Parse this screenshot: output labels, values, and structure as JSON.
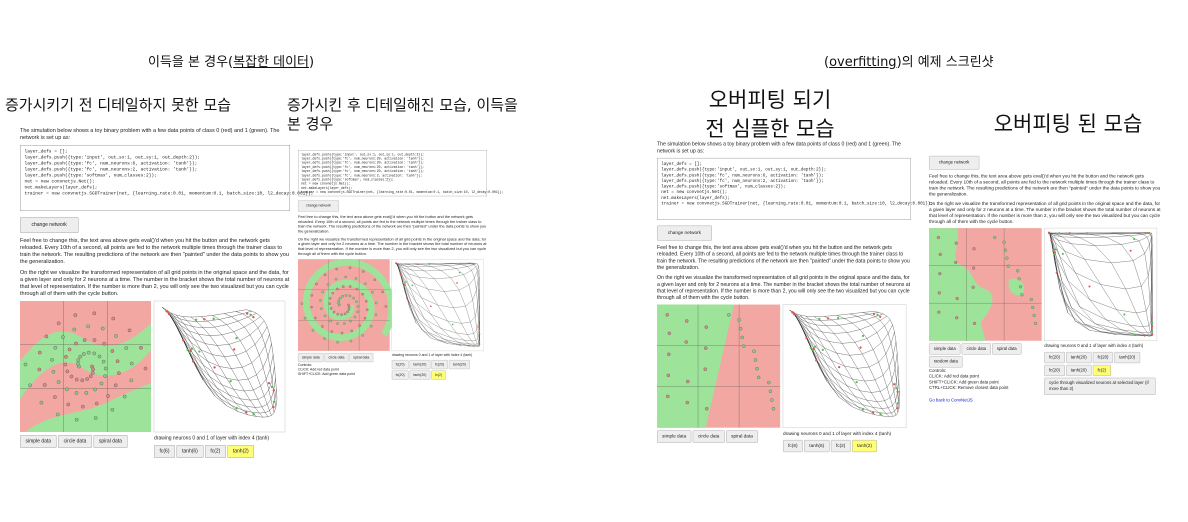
{
  "header_left": {
    "before": "이득을 본 경우(",
    "link": "복잡한 데이터",
    "after": ")"
  },
  "header_right": {
    "before": "(",
    "link": "overfitting",
    "after": ")의 예제 스크린샷"
  },
  "panels": [
    {
      "title": [
        "증가시키기 전 디테일하지 못한 모습"
      ],
      "intro": "The simulation below shows a toy binary problem with a few data points of class 0 (red) and 1 (green). The network is set up as:",
      "code": [
        "layer_defs = [];",
        "layer_defs.push({type:'input', out_sx:1, out_sy:1, out_depth:2});",
        "layer_defs.push({type:'fc', num_neurons:6, activation: 'tanh'});",
        "layer_defs.push({type:'fc', num_neurons:2, activation: 'tanh'});",
        "layer_defs.push({type:'softmax', num_classes:2});",
        "net = new convnetjs.Net();",
        "net.makeLayers(layer_defs);",
        "trainer = new convnetjs.SGDTrainer(net, {learning_rate:0.01, momentum:0.1, batch_size:10, l2_decay:0.001});"
      ],
      "button": "change network",
      "paragraphs": [
        "Feel free to change this, the text area above gets eval()'d when you hit the button and the network gets reloaded. Every 10th of a second, all points are fed to the network multiple times through the trainer class to train the network. The resulting predictions of the network are then \"painted\" under the data points to show you the generalization.",
        "On the right we visualize the transformed representation of all grid points in the original space and the data, for a given layer and only for 2 neurons at a time. The number in the bracket shows the total number of neurons at that level of representation. If the number is more than 2, you will only see the two visualized but you can cycle through all of them with the cycle button."
      ],
      "data_buttons": [
        "simple data",
        "circle data",
        "spiral data"
      ],
      "caption": "drawing neurons 0 and 1 of layer with index 4 (tanh)",
      "layer_buttons": [
        "fc(6)",
        "tanh(6)",
        "fc(2)",
        "tanh(2)"
      ]
    },
    {
      "title": [
        "증가시킨 후 디테일해진 모습, 이득을",
        "본 경우"
      ],
      "code": [
        "layer_defs.push({type:'input', out_sx:1, out_sy:1, out_depth:2});",
        "layer_defs.push({type:'fc', num_neurons:20, activation: 'tanh'});",
        "layer_defs.push({type:'fc', num_neurons:20, activation: 'tanh'});",
        "layer_defs.push({type:'fc', num_neurons:20, activation: 'tanh'});",
        "layer_defs.push({type:'fc', num_neurons:20, activation: 'tanh'});",
        "layer_defs.push({type:'fc', num_neurons:2, activation: 'tanh'});",
        "layer_defs.push({type:'softmax', num_classes:2});",
        "net = new convnetjs.Net();",
        "net.makeLayers(layer_defs);",
        "trainer = new convnetjs.SGDTrainer(net, {learning_rate:0.01, momentum:0.1, batch_size:10, l2_decay:0.001});"
      ],
      "button": "change network",
      "paragraphs": [
        "Feel free to change this, the text area above gets eval()'d when you hit the button and the network gets reloaded. Every 10th of a second, all points are fed to the network multiple times through the trainer class to train the network. The resulting predictions of the network are then \"painted\" under the data points to show you the generalization.",
        "On the right we visualize the transformed representation of all grid points in the original space and the data, for a given layer and only for 2 neurons at a time. The number in the bracket shows the total number of neurons at that level of representation. If the number is more than 2, you will only see the two visualized but you can cycle through all of them with the cycle button."
      ],
      "data_buttons": [
        "simple data",
        "circle data",
        "spiral data"
      ],
      "caption": "drawing neurons 0 and 1 of layer with index 4 (tanh)",
      "layer_buttons": [
        "fc(20)",
        "tanh(20)",
        "fc(20)",
        "tanh(20)",
        "fc(20)",
        "tanh(20)",
        "fc(2)"
      ],
      "controls": [
        "Controls:",
        "CLICK: Add red data point",
        "SHIFT+CLICK: Add green data point"
      ]
    },
    {
      "title": [
        "오버피팅 되기",
        "전 심플한 모습"
      ],
      "intro": "The simulation below shows a toy binary problem with a few data points of class 0 (red) and 1 (green). The network is set up as:",
      "code": [
        "layer_defs = [];",
        "layer_defs.push({type:'input', out_sx:1, out_sy:1, out_depth:2});",
        "layer_defs.push({type:'fc', num_neurons:6, activation: 'tanh'});",
        "layer_defs.push({type:'fc', num_neurons:2, activation: 'tanh'});",
        "layer_defs.push({type:'softmax', num_classes:2});",
        "net = new convnetjs.Net();",
        "net.makeLayers(layer_defs);",
        "trainer = new convnetjs.SGDTrainer(net, {learning_rate:0.01, momentum:0.1, batch_size:10, l2_decay:0.001});"
      ],
      "button": "change network",
      "paragraphs": [
        "Feel free to change this, the text area above gets eval()'d when you hit the button and the network gets reloaded. Every 10th of a second, all points are fed to the network multiple times through the trainer class to train the network. The resulting predictions of the network are then \"painted\" under the data points to show you the generalization.",
        "On the right we visualize the transformed representation of all grid points in the original space and the data, for a given layer and only for 2 neurons at a time. The number in the bracket shows the total number of neurons at that level of representation. If the number is more than 2, you will only see the two visualized but you can cycle through all of them with the cycle button."
      ],
      "data_buttons": [
        "simple data",
        "circle data",
        "spiral data"
      ],
      "caption": "drawing neurons 0 and 1 of layer with index 4 (tanh)",
      "layer_buttons": [
        "fc(6)",
        "tanh(6)",
        "fc(2)",
        "tanh(2)"
      ]
    },
    {
      "title": [
        "오버피팅 된 모습"
      ],
      "button": "change network",
      "paragraphs": [
        "Feel free to change this, the text area above gets eval()'d when you hit the button and the network gets reloaded. Every 10th of a second, all points are fed to the network multiple times through the trainer class to train the network. The resulting predictions of the network are then \"painted\" under the data points to show you the generalization.",
        "On the right we visualize the transformed representation of all grid points in the original space and the data, for a given layer and only for 2 neurons at a time. The number in the bracket shows the total number of neurons at that level of representation. If the number is more than 2, you will only see the two visualized but you can cycle through all of them with the cycle button."
      ],
      "data_buttons": [
        "simple data",
        "circle data",
        "spiral data",
        "random data"
      ],
      "caption": "drawing neurons 0 and 1 of layer with index 4 (tanh)",
      "layer_buttons": [
        "fc(20)",
        "tanh(20)",
        "fc(20)",
        "tanh(20)",
        "fc(20)",
        "tanh(20)",
        "fc(2)"
      ],
      "cycle_button": "cycle through visualized neurons at selected layer (if more than 2)",
      "controls": [
        "Controls:",
        "CLICK: Add red data point",
        "SHIFT+CLICK: Add green data point",
        "CTRL+CLICK: Remove closest data point"
      ],
      "back_link": "Go back to ConvNetJS"
    }
  ]
}
